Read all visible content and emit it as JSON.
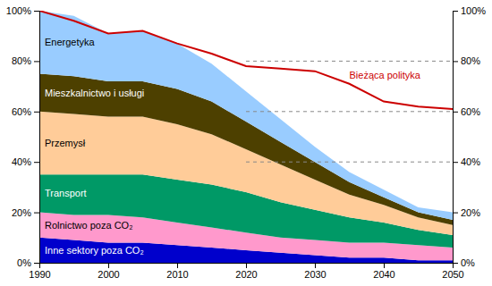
{
  "chart_data": {
    "type": "area",
    "stacked": true,
    "grid": false,
    "x": [
      1990,
      1995,
      2000,
      2005,
      2010,
      2015,
      2020,
      2025,
      2030,
      2035,
      2040,
      2045,
      2050
    ],
    "series": [
      {
        "name": "Inne sektory poza CO₂",
        "type": "area",
        "color": "#0000CC",
        "values": [
          10,
          9,
          8,
          8,
          7,
          6,
          5,
          4,
          3,
          2,
          2,
          1,
          1
        ]
      },
      {
        "name": "Rolnictwo poza CO₂",
        "type": "area",
        "color": "#FF99CC",
        "values": [
          10,
          10,
          11,
          10,
          9,
          8,
          7,
          6,
          6,
          6,
          6,
          6,
          5
        ]
      },
      {
        "name": "Transport",
        "type": "area",
        "color": "#009966",
        "values": [
          15,
          16,
          16,
          17,
          17,
          17,
          16,
          14,
          12,
          10,
          8,
          6,
          5
        ]
      },
      {
        "name": "Przemysł",
        "type": "area",
        "color": "#FFCC99",
        "values": [
          25,
          24,
          23,
          23,
          22,
          20,
          17,
          15,
          12,
          9,
          7,
          5,
          4
        ]
      },
      {
        "name": "Mieszkalnictwo i usługi",
        "type": "area",
        "color": "#4D4000",
        "values": [
          15,
          15,
          14,
          14,
          14,
          13,
          11,
          9,
          7,
          5,
          3,
          2,
          2
        ]
      },
      {
        "name": "Energetyka",
        "type": "area",
        "color": "#99CCFF",
        "values": [
          25,
          24,
          19,
          20,
          18,
          15,
          12,
          9,
          6,
          4,
          3,
          2,
          3
        ]
      },
      {
        "name": "Bieżąca polityka",
        "type": "line",
        "color": "#CC0000",
        "values": [
          100,
          96,
          91,
          92,
          87,
          83,
          78,
          77,
          76,
          71,
          64,
          62,
          61
        ]
      }
    ],
    "reference_lines": {
      "y": [
        80,
        60,
        40
      ],
      "x": [
        2020,
        2050
      ],
      "color": "#888888",
      "line_style": "dashed"
    },
    "xlim": [
      1990,
      2050
    ],
    "ylim": [
      0,
      100
    ],
    "xticks": [
      1990,
      2000,
      2010,
      2020,
      2030,
      2040,
      2050
    ],
    "yticks": [
      {
        "value": 0,
        "label": "0%"
      },
      {
        "value": 20,
        "label": "20%"
      },
      {
        "value": 40,
        "label": "40%"
      },
      {
        "value": 60,
        "label": "60%"
      },
      {
        "value": 80,
        "label": "80%"
      },
      {
        "value": 100,
        "label": "100%"
      }
    ],
    "y2lim": [
      0,
      100
    ],
    "y2ticks": [
      {
        "value": 0,
        "label": "0%"
      },
      {
        "value": 20,
        "label": "20%"
      },
      {
        "value": 40,
        "label": "40%"
      },
      {
        "value": 60,
        "label": "60%"
      },
      {
        "value": 80,
        "label": "80%"
      },
      {
        "value": 100,
        "label": "100%"
      }
    ]
  }
}
